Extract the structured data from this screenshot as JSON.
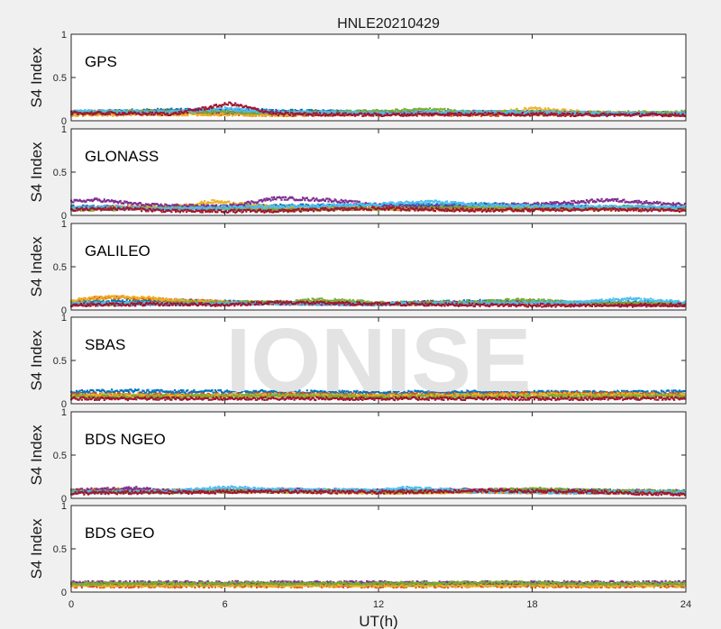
{
  "chart_data": {
    "type": "scatter",
    "title": "HNLE20210429",
    "xlabel": "UT(h)",
    "ylabel": "S4 Index",
    "xlim": [
      0,
      24
    ],
    "ylim": [
      0,
      1
    ],
    "xticks": [
      0,
      6,
      12,
      18,
      24
    ],
    "yticks": [
      0,
      0.5,
      1
    ],
    "watermark": "IONISE",
    "series_colors": [
      "#0072BD",
      "#D95319",
      "#EDB120",
      "#7E2F8E",
      "#77AC30",
      "#4DBEEE",
      "#A2142F"
    ],
    "panels": [
      {
        "label": "GPS",
        "series": [
          {
            "color": "#0072BD",
            "x": [
              0,
              3,
              6,
              9,
              12,
              15,
              18,
              21,
              24
            ],
            "y": [
              0.1,
              0.12,
              0.13,
              0.11,
              0.1,
              0.09,
              0.1,
              0.08,
              0.09
            ]
          },
          {
            "color": "#D95319",
            "x": [
              0,
              4,
              8,
              12,
              16,
              20,
              24
            ],
            "y": [
              0.08,
              0.09,
              0.07,
              0.08,
              0.07,
              0.08,
              0.07
            ]
          },
          {
            "color": "#EDB120",
            "x": [
              0,
              4,
              8,
              12,
              16,
              18,
              20,
              24
            ],
            "y": [
              0.07,
              0.08,
              0.07,
              0.09,
              0.08,
              0.14,
              0.1,
              0.08
            ]
          },
          {
            "color": "#7E2F8E",
            "x": [
              0,
              4,
              8,
              12,
              16,
              20,
              24
            ],
            "y": [
              0.09,
              0.11,
              0.1,
              0.09,
              0.1,
              0.09,
              0.08
            ]
          },
          {
            "color": "#77AC30",
            "x": [
              0,
              4,
              8,
              12,
              14,
              16,
              20,
              24
            ],
            "y": [
              0.1,
              0.11,
              0.09,
              0.11,
              0.13,
              0.1,
              0.09,
              0.1
            ]
          },
          {
            "color": "#4DBEEE",
            "x": [
              0,
              4,
              6,
              8,
              12,
              16,
              20,
              24
            ],
            "y": [
              0.11,
              0.1,
              0.14,
              0.1,
              0.09,
              0.1,
              0.09,
              0.08
            ]
          },
          {
            "color": "#A2142F",
            "x": [
              0,
              4,
              6.2,
              8,
              12,
              16,
              20,
              24
            ],
            "y": [
              0.09,
              0.08,
              0.2,
              0.08,
              0.07,
              0.08,
              0.07,
              0.07
            ]
          }
        ]
      },
      {
        "label": "GLONASS",
        "series": [
          {
            "color": "#0072BD",
            "x": [
              0,
              4,
              8,
              12,
              16,
              18,
              20,
              24
            ],
            "y": [
              0.1,
              0.09,
              0.11,
              0.12,
              0.13,
              0.12,
              0.1,
              0.09
            ]
          },
          {
            "color": "#D95319",
            "x": [
              0,
              2,
              4,
              6,
              8,
              12,
              16,
              20,
              24
            ],
            "y": [
              0.08,
              0.09,
              0.1,
              0.08,
              0.07,
              0.08,
              0.07,
              0.08,
              0.07
            ]
          },
          {
            "color": "#EDB120",
            "x": [
              0,
              4,
              5.5,
              6.5,
              8,
              12,
              16,
              20,
              24
            ],
            "y": [
              0.08,
              0.1,
              0.16,
              0.14,
              0.09,
              0.08,
              0.09,
              0.08,
              0.07
            ]
          },
          {
            "color": "#7E2F8E",
            "x": [
              0,
              1,
              3,
              6,
              8,
              10,
              12,
              14,
              16,
              19,
              21,
              24
            ],
            "y": [
              0.16,
              0.18,
              0.12,
              0.1,
              0.2,
              0.18,
              0.12,
              0.1,
              0.11,
              0.14,
              0.18,
              0.12
            ]
          },
          {
            "color": "#77AC30",
            "x": [
              0,
              4,
              8,
              12,
              16,
              20,
              22,
              24
            ],
            "y": [
              0.07,
              0.08,
              0.07,
              0.08,
              0.09,
              0.08,
              0.1,
              0.08
            ]
          },
          {
            "color": "#4DBEEE",
            "x": [
              0,
              4,
              8,
              12,
              14,
              16,
              20,
              24
            ],
            "y": [
              0.09,
              0.08,
              0.1,
              0.13,
              0.16,
              0.12,
              0.1,
              0.09
            ]
          },
          {
            "color": "#A2142F",
            "x": [
              0,
              2,
              4,
              8,
              10,
              12,
              16,
              20,
              24
            ],
            "y": [
              0.07,
              0.08,
              0.05,
              0.05,
              0.07,
              0.08,
              0.06,
              0.07,
              0.06
            ]
          }
        ]
      },
      {
        "label": "GALILEO",
        "series": [
          {
            "color": "#0072BD",
            "x": [
              0,
              2,
              4,
              8,
              12,
              14,
              16,
              20,
              24
            ],
            "y": [
              0.09,
              0.1,
              0.11,
              0.08,
              0.07,
              0.09,
              0.1,
              0.09,
              0.08
            ]
          },
          {
            "color": "#D95319",
            "x": [
              0,
              1,
              2,
              3,
              4,
              6,
              8,
              12,
              16,
              20,
              24
            ],
            "y": [
              0.1,
              0.14,
              0.15,
              0.13,
              0.11,
              0.09,
              0.08,
              0.07,
              0.08,
              0.07,
              0.06
            ]
          },
          {
            "color": "#EDB120",
            "x": [
              0,
              1.5,
              3,
              4.5,
              8,
              12,
              16,
              20,
              24
            ],
            "y": [
              0.11,
              0.15,
              0.14,
              0.1,
              0.08,
              0.07,
              0.08,
              0.07,
              0.07
            ]
          },
          {
            "color": "#7E2F8E",
            "x": [
              0,
              4,
              8,
              12,
              14,
              16,
              18,
              20,
              24
            ],
            "y": [
              0.06,
              0.07,
              0.08,
              0.07,
              0.09,
              0.08,
              0.1,
              0.07,
              0.06
            ]
          },
          {
            "color": "#77AC30",
            "x": [
              0,
              4,
              8,
              9.5,
              11,
              12,
              16,
              17.5,
              20,
              24
            ],
            "y": [
              0.07,
              0.08,
              0.09,
              0.12,
              0.11,
              0.08,
              0.09,
              0.12,
              0.08,
              0.07
            ]
          },
          {
            "color": "#4DBEEE",
            "x": [
              0,
              4,
              8,
              12,
              16,
              20,
              21.5,
              23,
              24
            ],
            "y": [
              0.08,
              0.07,
              0.08,
              0.07,
              0.08,
              0.09,
              0.13,
              0.11,
              0.09
            ]
          },
          {
            "color": "#A2142F",
            "x": [
              0,
              4,
              6,
              8,
              12,
              16,
              20,
              24
            ],
            "y": [
              0.06,
              0.07,
              0.06,
              0.09,
              0.07,
              0.06,
              0.05,
              0.06
            ]
          }
        ]
      },
      {
        "label": "SBAS",
        "series": [
          {
            "color": "#0072BD",
            "x": [
              0,
              2,
              4,
              8,
              12,
              16,
              20,
              24
            ],
            "y": [
              0.14,
              0.15,
              0.14,
              0.14,
              0.13,
              0.14,
              0.13,
              0.14
            ]
          },
          {
            "color": "#D95319",
            "x": [
              0,
              4,
              8,
              12,
              16,
              20,
              24
            ],
            "y": [
              0.11,
              0.1,
              0.11,
              0.1,
              0.11,
              0.12,
              0.11
            ]
          },
          {
            "color": "#EDB120",
            "x": [
              0,
              4,
              8,
              12,
              16,
              20,
              24
            ],
            "y": [
              0.1,
              0.09,
              0.1,
              0.09,
              0.1,
              0.11,
              0.1
            ]
          },
          {
            "color": "#77AC30",
            "x": [
              0,
              4,
              8,
              12,
              16,
              20,
              24
            ],
            "y": [
              0.08,
              0.08,
              0.09,
              0.08,
              0.08,
              0.09,
              0.08
            ]
          },
          {
            "color": "#A2142F",
            "x": [
              0,
              4,
              8,
              12,
              16,
              20,
              24
            ],
            "y": [
              0.06,
              0.06,
              0.06,
              0.06,
              0.06,
              0.06,
              0.06
            ]
          }
        ]
      },
      {
        "label": "BDS NGEO",
        "series": [
          {
            "color": "#0072BD",
            "x": [
              0,
              4,
              8,
              12,
              16,
              20,
              24
            ],
            "y": [
              0.08,
              0.09,
              0.08,
              0.09,
              0.08,
              0.09,
              0.08
            ]
          },
          {
            "color": "#D95319",
            "x": [
              0,
              2,
              4,
              8,
              12,
              16,
              20,
              24
            ],
            "y": [
              0.09,
              0.1,
              0.08,
              0.09,
              0.07,
              0.08,
              0.07,
              0.07
            ]
          },
          {
            "color": "#EDB120",
            "x": [
              0,
              2,
              4,
              8,
              12,
              16,
              20,
              24
            ],
            "y": [
              0.07,
              0.1,
              0.09,
              0.08,
              0.07,
              0.08,
              0.07,
              0.06
            ]
          },
          {
            "color": "#7E2F8E",
            "x": [
              0,
              2.5,
              4,
              8,
              12,
              16,
              20,
              24
            ],
            "y": [
              0.09,
              0.12,
              0.08,
              0.1,
              0.09,
              0.1,
              0.09,
              0.08
            ]
          },
          {
            "color": "#77AC30",
            "x": [
              0,
              4,
              8,
              12,
              16,
              18,
              20,
              24
            ],
            "y": [
              0.08,
              0.07,
              0.09,
              0.08,
              0.09,
              0.11,
              0.09,
              0.08
            ]
          },
          {
            "color": "#4DBEEE",
            "x": [
              0,
              4,
              6,
              8,
              12,
              13,
              16,
              20,
              24
            ],
            "y": [
              0.07,
              0.08,
              0.13,
              0.1,
              0.09,
              0.12,
              0.08,
              0.07,
              0.07
            ]
          },
          {
            "color": "#A2142F",
            "x": [
              0,
              4,
              8,
              12,
              16,
              20,
              22,
              24
            ],
            "y": [
              0.06,
              0.07,
              0.08,
              0.07,
              0.09,
              0.08,
              0.06,
              0.05
            ]
          }
        ]
      },
      {
        "label": "BDS GEO",
        "series": [
          {
            "color": "#0072BD",
            "x": [
              0,
              4,
              8,
              12,
              16,
              20,
              24
            ],
            "y": [
              0.09,
              0.09,
              0.09,
              0.09,
              0.09,
              0.09,
              0.09
            ]
          },
          {
            "color": "#D95319",
            "x": [
              0,
              4,
              8,
              12,
              16,
              20,
              24
            ],
            "y": [
              0.07,
              0.07,
              0.07,
              0.07,
              0.07,
              0.07,
              0.07
            ]
          },
          {
            "color": "#EDB120",
            "x": [
              0,
              4,
              8,
              12,
              16,
              20,
              24
            ],
            "y": [
              0.08,
              0.08,
              0.08,
              0.08,
              0.08,
              0.08,
              0.08
            ]
          },
          {
            "color": "#7E2F8E",
            "x": [
              0,
              4,
              8,
              12,
              16,
              20,
              24
            ],
            "y": [
              0.11,
              0.11,
              0.11,
              0.11,
              0.11,
              0.11,
              0.11
            ]
          },
          {
            "color": "#77AC30",
            "x": [
              0,
              4,
              8,
              12,
              16,
              20,
              24
            ],
            "y": [
              0.1,
              0.1,
              0.1,
              0.1,
              0.11,
              0.1,
              0.1
            ]
          }
        ]
      }
    ]
  }
}
